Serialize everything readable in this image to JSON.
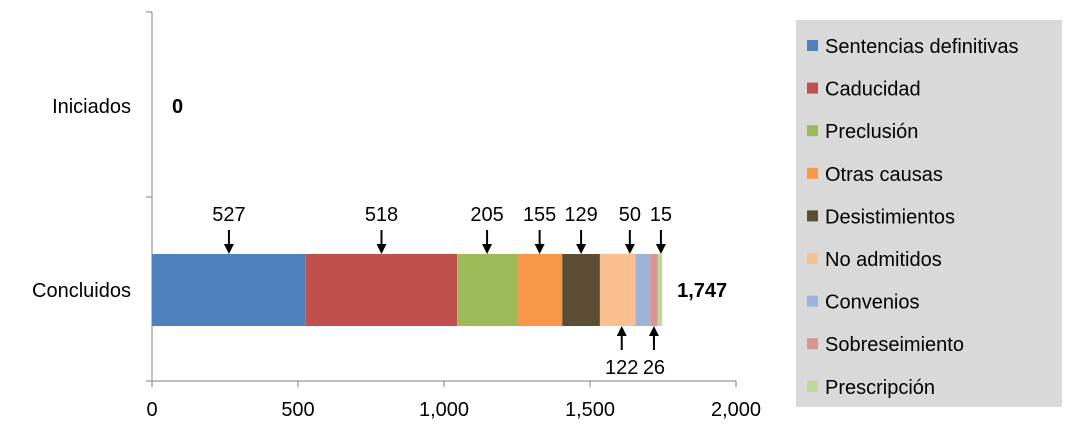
{
  "chart_data": {
    "type": "bar",
    "orientation": "horizontal",
    "stacked": true,
    "categories": [
      "Iniciados",
      "Concluidos"
    ],
    "series": [
      {
        "name": "Sentencias definitivas",
        "color": "#4F81BD",
        "values": [
          0,
          527
        ],
        "label": "527"
      },
      {
        "name": "Caducidad",
        "color": "#C0504D",
        "values": [
          0,
          518
        ],
        "label": "518"
      },
      {
        "name": "Preclusión",
        "color": "#9BBB59",
        "values": [
          0,
          205
        ],
        "label": "205"
      },
      {
        "name": "Otras causas",
        "color": "#F79646",
        "values": [
          0,
          155
        ],
        "label": "155"
      },
      {
        "name": "Desistimientos",
        "color": "#5B4E34",
        "values": [
          0,
          129
        ],
        "label": "129"
      },
      {
        "name": "No admitidos",
        "color": "#FAC090",
        "values": [
          0,
          122
        ],
        "label": "122"
      },
      {
        "name": "Convenios",
        "color": "#9DB3DA",
        "values": [
          0,
          50
        ],
        "label": "50"
      },
      {
        "name": "Sobreseimiento",
        "color": "#D99594",
        "values": [
          0,
          26
        ],
        "label": "26"
      },
      {
        "name": "Prescripción",
        "color": "#C3D69B",
        "values": [
          0,
          15
        ],
        "label": "15"
      }
    ],
    "totals": [
      "0",
      "1,747"
    ],
    "xlim": [
      0,
      2000
    ],
    "xticks": [
      "0",
      "500",
      "1,000",
      "1,500",
      "2,000"
    ],
    "xtick_values": [
      0,
      500,
      1000,
      1500,
      2000
    ],
    "label_positions": [
      "above",
      "above",
      "above",
      "above",
      "above",
      "below",
      "above",
      "below",
      "above"
    ],
    "legend_position": "right",
    "legend_background": "#D9D9D9",
    "grid": false,
    "title": "",
    "xlabel": "",
    "ylabel": ""
  }
}
